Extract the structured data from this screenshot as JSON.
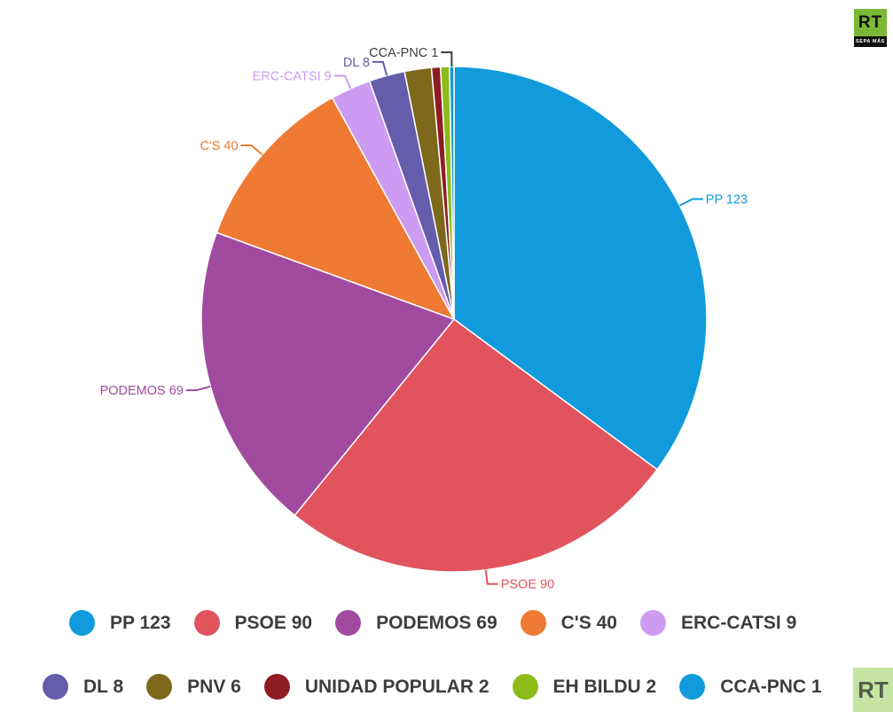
{
  "brand": {
    "logo_text": "RT",
    "logo_tagline": "SEPA MÁS",
    "logo_green": "#7bb836",
    "watermark_text": "RT"
  },
  "chart_data": {
    "type": "pie",
    "title": "",
    "total": 350,
    "direction": "clockwise",
    "start_angle_deg": 0,
    "legend_position": "bottom",
    "text_color": "#3d3d3d",
    "slices": [
      {
        "name": "PP",
        "value": 123,
        "color": "#119bdc",
        "label": "PP 123",
        "show_label": true
      },
      {
        "name": "PSOE",
        "value": 90,
        "color": "#e1545e",
        "label": "PSOE 90",
        "show_label": true
      },
      {
        "name": "PODEMOS",
        "value": 69,
        "color": "#a04ba0",
        "label": "PODEMOS 69",
        "show_label": true
      },
      {
        "name": "C'S",
        "value": 40,
        "color": "#ee7a33",
        "label": "C'S 40",
        "show_label": true
      },
      {
        "name": "ERC-CATSI",
        "value": 9,
        "color": "#cd9cf2",
        "label": "ERC-CATSI 9",
        "show_label": true
      },
      {
        "name": "DL",
        "value": 8,
        "color": "#655cab",
        "label": "DL 8",
        "show_label": true
      },
      {
        "name": "PNV",
        "value": 6,
        "color": "#7d681c",
        "label": "PNV 6",
        "show_label": false
      },
      {
        "name": "UNIDAD POPULAR",
        "value": 2,
        "color": "#8e1c22",
        "label": "UNIDAD POPULAR 2",
        "show_label": false
      },
      {
        "name": "EH BILDU",
        "value": 2,
        "color": "#8cbb1a",
        "label": "EH BILDU 2",
        "show_label": false
      },
      {
        "name": "CCA-PNC",
        "value": 1,
        "color": "#119bdc",
        "label": "CCA-PNC 1",
        "show_label": true,
        "label_color": "#3d3d3d"
      }
    ],
    "legend_rows": [
      [
        0,
        1,
        2,
        3,
        4
      ],
      [
        5,
        6,
        7,
        8,
        9
      ]
    ]
  }
}
